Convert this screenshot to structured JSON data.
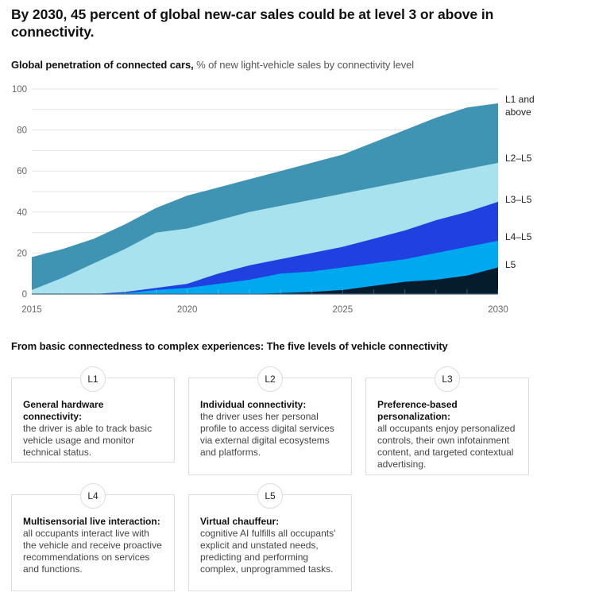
{
  "title": "By 2030, 45 percent of global new-car sales could be at level 3 or above in connectivity.",
  "subtitle": {
    "bold": "Global penetration of connected cars,",
    "rest": " % of new light-vehicle sales by connectivity level"
  },
  "chart_data": {
    "type": "area",
    "title": "Global penetration of connected cars",
    "ylabel": "% of new light-vehicle sales by connectivity level",
    "xlabel": "",
    "x": [
      2015,
      2016,
      2017,
      2018,
      2019,
      2020,
      2021,
      2022,
      2023,
      2024,
      2025,
      2026,
      2027,
      2028,
      2029,
      2030
    ],
    "xticks": [
      "2015",
      "2020",
      "2025",
      "2030"
    ],
    "yticks": [
      "0",
      "20",
      "40",
      "60",
      "80",
      "100"
    ],
    "ylim": [
      0,
      100
    ],
    "grid": true,
    "stacked_cumulative": true,
    "legend_placement": "right-end-labels",
    "series": [
      {
        "name": "L1 and above",
        "color": "#3f93b3",
        "values": [
          18,
          22,
          27,
          34,
          42,
          48,
          52,
          56,
          60,
          64,
          68,
          74,
          80,
          86,
          91,
          93
        ]
      },
      {
        "name": "L2–L5",
        "color": "#a8e2ee",
        "values": [
          2,
          8,
          15,
          22,
          30,
          32,
          36,
          40,
          43,
          46,
          49,
          52,
          55,
          58,
          61,
          64
        ]
      },
      {
        "name": "L3–L5",
        "color": "#2040e0",
        "values": [
          0,
          0,
          0,
          1,
          3,
          5,
          10,
          14,
          17,
          20,
          23,
          27,
          31,
          36,
          40,
          45
        ]
      },
      {
        "name": "L4–L5",
        "color": "#00a8f0",
        "values": [
          0,
          0,
          0,
          0.5,
          2,
          3,
          5,
          7,
          10,
          11,
          13,
          15,
          17,
          20,
          23,
          26
        ]
      },
      {
        "name": "L5",
        "color": "#051c2c",
        "values": [
          0,
          0,
          0,
          0,
          0,
          0,
          0,
          0,
          0.5,
          1,
          2,
          4,
          6,
          7,
          9,
          13
        ]
      }
    ],
    "series_labels": [
      {
        "line1": "L1 and",
        "line2": "above"
      },
      {
        "line1": "L2–L5",
        "line2": ""
      },
      {
        "line1": "L3–L5",
        "line2": ""
      },
      {
        "line1": "L4–L5",
        "line2": ""
      },
      {
        "line1": "L5",
        "line2": ""
      }
    ]
  },
  "levels_section": {
    "title": "From basic connectedness to complex experiences: The five levels of vehicle connectivity",
    "cards": [
      {
        "badge": "L1",
        "heading": "General hardware connectivity:",
        "description": "the driver is able to track basic vehicle usage and monitor technical status."
      },
      {
        "badge": "L2",
        "heading": "Individual connectivity:",
        "description": "the driver uses her personal profile to access digital services via external digital ecosystems and platforms."
      },
      {
        "badge": "L3",
        "heading": "Preference-based personalization:",
        "description": "all occupants enjoy personalized controls, their own infotainment content, and targeted contextual advertising."
      },
      {
        "badge": "L4",
        "heading": "Multisensorial live interaction:",
        "description": "all occupants interact live with the vehicle and receive proactive recommendations on services and functions."
      },
      {
        "badge": "L5",
        "heading": "Virtual chauffeur:",
        "description": "cognitive AI fulfills all occupants' explicit and unstated needs, predicting and performing complex, unprogrammed tasks."
      }
    ]
  }
}
